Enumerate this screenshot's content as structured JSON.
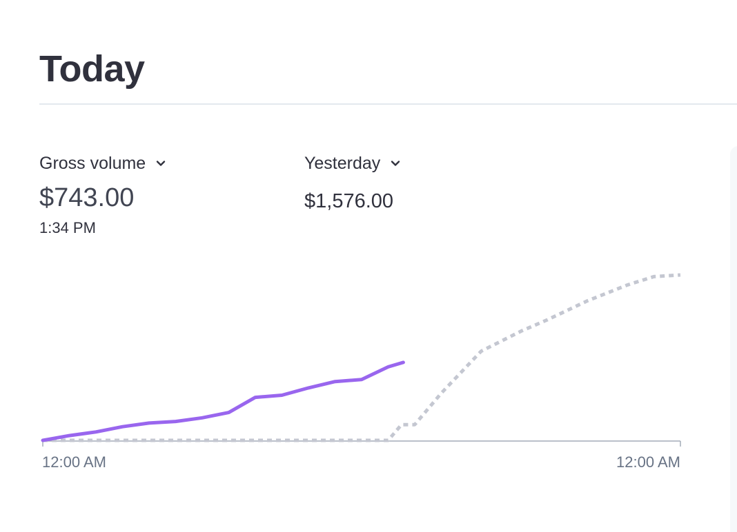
{
  "page": {
    "title": "Today"
  },
  "metrics": {
    "primary": {
      "label": "Gross volume",
      "value": "$743.00",
      "time": "1:34 PM"
    },
    "comparison": {
      "label": "Yesterday",
      "value": "$1,576.00"
    }
  },
  "colors": {
    "today_line": "#9966ee",
    "yesterday_line": "#c4c7d1",
    "axis": "#a3acb9"
  },
  "icons": {
    "metric_dropdown": "chevron-down-icon",
    "comparison_dropdown": "chevron-down-icon"
  },
  "chart_data": {
    "type": "line",
    "x_tick_labels": [
      "12:00 AM",
      "12:00 AM"
    ],
    "x_range_hours": [
      0,
      24
    ],
    "ylim": [
      0,
      1576
    ],
    "grid": false,
    "series": [
      {
        "name": "Gross volume",
        "style": "solid",
        "points": [
          [
            0.0,
            0
          ],
          [
            1.0,
            45
          ],
          [
            2.0,
            80
          ],
          [
            3.0,
            130
          ],
          [
            4.0,
            165
          ],
          [
            5.0,
            180
          ],
          [
            6.0,
            215
          ],
          [
            7.0,
            265
          ],
          [
            8.0,
            410
          ],
          [
            9.0,
            430
          ],
          [
            10.0,
            500
          ],
          [
            11.0,
            560
          ],
          [
            12.0,
            580
          ],
          [
            13.0,
            700
          ],
          [
            13.57,
            743
          ]
        ]
      },
      {
        "name": "Yesterday",
        "style": "dotted",
        "points": [
          [
            0.0,
            0
          ],
          [
            13.0,
            0
          ],
          [
            13.5,
            150
          ],
          [
            14.0,
            150
          ],
          [
            15.0,
            450
          ],
          [
            16.5,
            850
          ],
          [
            18.0,
            1040
          ],
          [
            19.0,
            1150
          ],
          [
            20.5,
            1330
          ],
          [
            22.0,
            1480
          ],
          [
            23.0,
            1560
          ],
          [
            24.0,
            1576
          ]
        ]
      }
    ]
  }
}
